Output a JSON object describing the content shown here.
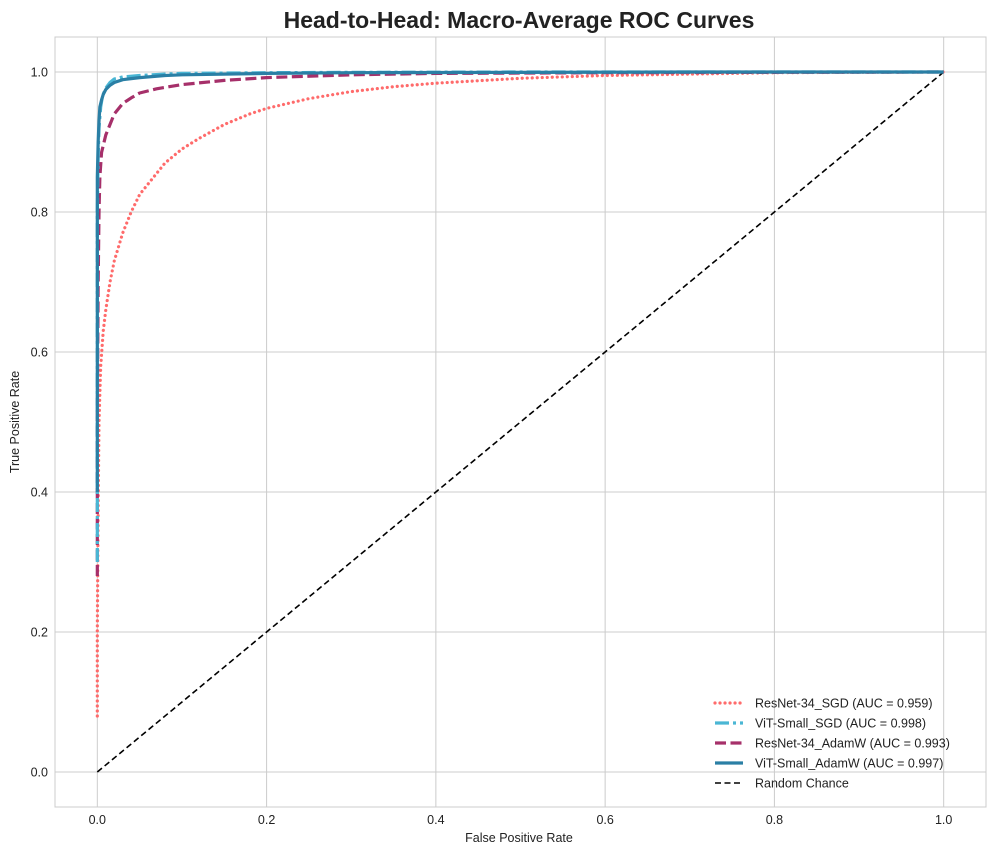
{
  "chart_data": {
    "type": "line",
    "title": "Head-to-Head: Macro-Average ROC Curves",
    "xlabel": "False Positive Rate",
    "ylabel": "True Positive Rate",
    "xlim": [
      -0.05,
      1.05
    ],
    "ylim": [
      -0.05,
      1.05
    ],
    "xticks": [
      0.0,
      0.2,
      0.4,
      0.6,
      0.8,
      1.0
    ],
    "yticks": [
      0.0,
      0.2,
      0.4,
      0.6,
      0.8,
      1.0
    ],
    "xtick_labels": [
      "0.0",
      "0.2",
      "0.4",
      "0.6",
      "0.8",
      "1.0"
    ],
    "ytick_labels": [
      "0.0",
      "0.2",
      "0.4",
      "0.6",
      "0.8",
      "1.0"
    ],
    "grid": true,
    "legend_position": "bottom-right",
    "series": [
      {
        "name": "ResNet-34_SGD (AUC = 0.959)",
        "color": "#ff6b6b",
        "dash": "dotted",
        "x": [
          0.0,
          0.0,
          0.001,
          0.002,
          0.004,
          0.007,
          0.01,
          0.015,
          0.02,
          0.03,
          0.04,
          0.05,
          0.06,
          0.08,
          0.1,
          0.12,
          0.15,
          0.18,
          0.2,
          0.25,
          0.3,
          0.35,
          0.4,
          0.5,
          0.6,
          0.7,
          0.8,
          0.9,
          1.0
        ],
        "y": [
          0.08,
          0.2,
          0.38,
          0.5,
          0.58,
          0.63,
          0.66,
          0.7,
          0.73,
          0.77,
          0.8,
          0.825,
          0.84,
          0.87,
          0.89,
          0.905,
          0.925,
          0.94,
          0.948,
          0.962,
          0.972,
          0.979,
          0.984,
          0.991,
          0.995,
          0.997,
          0.999,
          0.9995,
          1.0
        ]
      },
      {
        "name": "ViT-Small_SGD (AUC = 0.998)",
        "color": "#4ab6d4",
        "dash": "dashdot",
        "x": [
          0.0,
          0.0,
          0.0,
          0.001,
          0.002,
          0.004,
          0.006,
          0.01,
          0.015,
          0.02,
          0.03,
          0.05,
          0.08,
          0.1,
          0.2,
          0.3,
          0.5,
          0.7,
          1.0
        ],
        "y": [
          0.3,
          0.6,
          0.8,
          0.88,
          0.92,
          0.95,
          0.965,
          0.977,
          0.985,
          0.99,
          0.993,
          0.995,
          0.997,
          0.998,
          0.999,
          0.9995,
          1.0,
          1.0,
          1.0
        ]
      },
      {
        "name": "ResNet-34_AdamW (AUC = 0.993)",
        "color": "#a6306a",
        "dash": "dashed",
        "x": [
          0.0,
          0.0,
          0.001,
          0.002,
          0.003,
          0.005,
          0.008,
          0.01,
          0.015,
          0.02,
          0.03,
          0.04,
          0.05,
          0.07,
          0.1,
          0.15,
          0.2,
          0.3,
          0.4,
          0.6,
          0.8,
          1.0
        ],
        "y": [
          0.28,
          0.5,
          0.7,
          0.8,
          0.85,
          0.885,
          0.9,
          0.91,
          0.925,
          0.94,
          0.955,
          0.963,
          0.97,
          0.976,
          0.982,
          0.988,
          0.992,
          0.996,
          0.998,
          0.999,
          0.9995,
          1.0
        ]
      },
      {
        "name": "ViT-Small_AdamW (AUC = 0.997)",
        "color": "#2a7fa5",
        "dash": "solid",
        "x": [
          0.0,
          0.0,
          0.0,
          0.001,
          0.002,
          0.003,
          0.005,
          0.007,
          0.01,
          0.015,
          0.02,
          0.03,
          0.05,
          0.08,
          0.1,
          0.2,
          0.3,
          0.5,
          0.7,
          1.0
        ],
        "y": [
          0.4,
          0.7,
          0.85,
          0.9,
          0.93,
          0.95,
          0.96,
          0.968,
          0.975,
          0.981,
          0.985,
          0.989,
          0.992,
          0.995,
          0.996,
          0.998,
          0.999,
          0.9995,
          1.0,
          1.0
        ]
      },
      {
        "name": "Random Chance",
        "color": "#000000",
        "dash": "dashed-thin",
        "x": [
          0.0,
          1.0
        ],
        "y": [
          0.0,
          1.0
        ]
      }
    ]
  }
}
